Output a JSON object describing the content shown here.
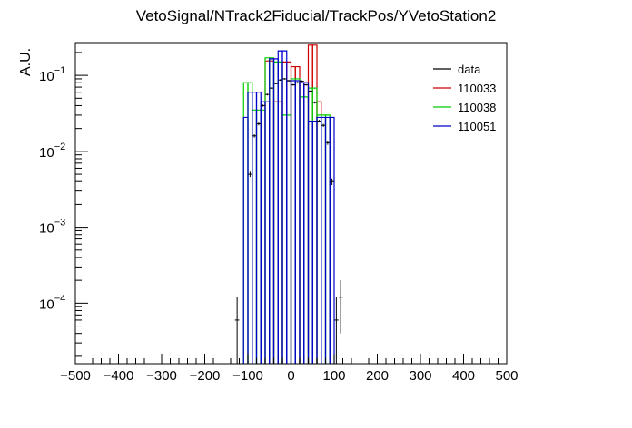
{
  "chart_data": {
    "type": "line",
    "title": "VetoSignal/NTrack2Fiducial/TrackPos/YVetoStation2",
    "xlabel": "",
    "ylabel": "A.U.",
    "xlim": [
      -500,
      500
    ],
    "ylim": [
      1.6e-05,
      0.27
    ],
    "yscale": "log",
    "bin_width": 10,
    "x_ticks": [
      -500,
      -400,
      -300,
      -200,
      -100,
      0,
      100,
      200,
      300,
      400,
      500
    ],
    "x_tick_labels": [
      "−500",
      "−400",
      "−300",
      "−200",
      "−100",
      "0",
      "100",
      "200",
      "300",
      "400",
      "500"
    ],
    "y_ticks": [
      {
        "value": 0.1,
        "base": "10",
        "exp": "−1"
      },
      {
        "value": 0.01,
        "base": "10",
        "exp": "−2"
      },
      {
        "value": 0.001,
        "base": "10",
        "exp": "−3"
      },
      {
        "value": 0.0001,
        "base": "10",
        "exp": "−4"
      }
    ],
    "legend_position": "top-right",
    "data_points": {
      "name": "data",
      "color": "#000000",
      "x": [
        -125,
        -95,
        -85,
        -75,
        -65,
        -55,
        -45,
        -35,
        -25,
        -15,
        -5,
        5,
        15,
        25,
        35,
        45,
        55,
        65,
        75,
        85,
        95,
        105,
        115
      ],
      "y": [
        6e-05,
        0.005,
        0.016,
        0.023,
        0.04,
        0.056,
        0.068,
        0.078,
        0.087,
        0.09,
        0.085,
        0.075,
        0.08,
        0.084,
        0.075,
        0.062,
        0.044,
        0.025,
        0.022,
        0.013,
        0.004,
        6e-05,
        0.00012
      ],
      "yerr": [
        6e-05,
        0.0004,
        0.0008,
        0.001,
        0.0013,
        0.0015,
        0.0017,
        0.0018,
        0.0019,
        0.002,
        0.0019,
        0.0018,
        0.0019,
        0.0019,
        0.0018,
        0.0016,
        0.0014,
        0.001,
        0.001,
        0.0008,
        0.0004,
        6e-05,
        8e-05
      ]
    },
    "series": [
      {
        "name": "110033",
        "color": "#cc0000",
        "x": [
          -55,
          -45,
          -35,
          -25,
          -15,
          -5,
          5,
          15,
          25,
          35,
          45,
          55,
          65
        ],
        "y": [
          0.155,
          0.155,
          0.045,
          0.045,
          0.15,
          0.15,
          0.13,
          0.13,
          0.08,
          0.08,
          0.25,
          0.25,
          0.045
        ]
      },
      {
        "name": "110038",
        "color": "#00cc00",
        "x": [
          -105,
          -95,
          -85,
          -75,
          -65,
          -55,
          -45,
          -35,
          -25,
          -15,
          -5,
          5,
          15,
          25,
          35,
          45,
          55,
          65,
          75,
          85
        ],
        "y": [
          0.08,
          0.08,
          0.035,
          0.035,
          0.035,
          0.17,
          0.17,
          0.15,
          0.15,
          0.03,
          0.03,
          0.09,
          0.09,
          0.052,
          0.052,
          0.068,
          0.068,
          0.03,
          0.03,
          0.03
        ]
      },
      {
        "name": "110051",
        "color": "#0000cc",
        "x": [
          -105,
          -95,
          -85,
          -75,
          -65,
          -55,
          -45,
          -35,
          -25,
          -15,
          -5,
          5,
          15,
          25,
          35,
          45,
          55,
          65,
          75,
          85,
          95
        ],
        "y": [
          0.028,
          0.06,
          0.06,
          0.06,
          0.045,
          0.045,
          0.165,
          0.165,
          0.21,
          0.21,
          0.085,
          0.085,
          0.085,
          0.08,
          0.08,
          0.025,
          0.025,
          0.028,
          0.028,
          0.028,
          0.028
        ]
      }
    ]
  }
}
